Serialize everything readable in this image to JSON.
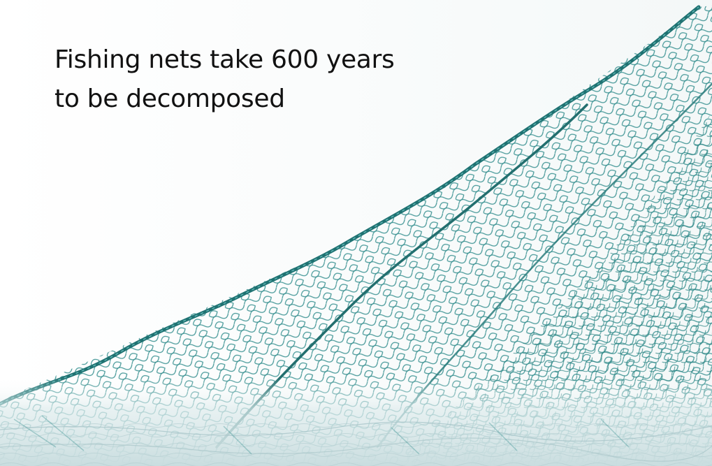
{
  "slide": {
    "title_lines": [
      "Fishing nets take 600 years",
      "to be decomposed"
    ]
  },
  "illustration": {
    "subject": "fishing-net",
    "colors": {
      "net": "#2c8a8a",
      "rope": "#1f7272",
      "water": "#cfe1e3",
      "background": "#ffffff",
      "text": "#111111"
    }
  }
}
